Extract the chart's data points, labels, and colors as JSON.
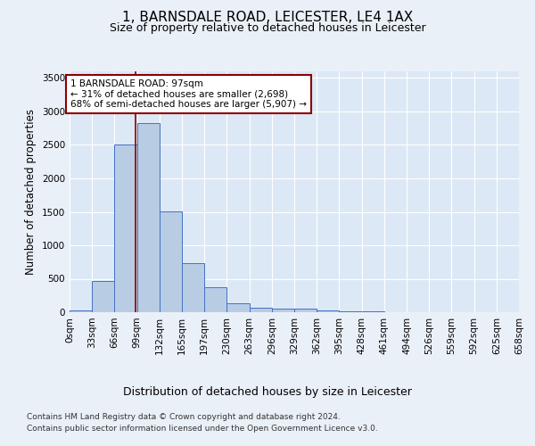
{
  "title1": "1, BARNSDALE ROAD, LEICESTER, LE4 1AX",
  "title2": "Size of property relative to detached houses in Leicester",
  "xlabel": "Distribution of detached houses by size in Leicester",
  "ylabel": "Number of detached properties",
  "bar_values": [
    30,
    470,
    2510,
    2820,
    1510,
    740,
    375,
    135,
    65,
    55,
    55,
    30,
    20,
    10,
    0,
    0,
    0,
    0,
    0,
    0
  ],
  "bar_color": "#b8cce4",
  "bar_edge_color": "#4472c4",
  "x_labels": [
    "0sqm",
    "33sqm",
    "66sqm",
    "99sqm",
    "132sqm",
    "165sqm",
    "197sqm",
    "230sqm",
    "263sqm",
    "296sqm",
    "329sqm",
    "362sqm",
    "395sqm",
    "428sqm",
    "461sqm",
    "494sqm",
    "526sqm",
    "559sqm",
    "592sqm",
    "625sqm",
    "658sqm"
  ],
  "ylim": [
    0,
    3600
  ],
  "yticks": [
    0,
    500,
    1000,
    1500,
    2000,
    2500,
    3000,
    3500
  ],
  "red_line_x": 2.94,
  "annotation_text": "1 BARNSDALE ROAD: 97sqm\n← 31% of detached houses are smaller (2,698)\n68% of semi-detached houses are larger (5,907) →",
  "footer1": "Contains HM Land Registry data © Crown copyright and database right 2024.",
  "footer2": "Contains public sector information licensed under the Open Government Licence v3.0.",
  "background_color": "#eaf0f8",
  "plot_bg_color": "#dce8f5",
  "grid_color": "#ffffff",
  "title1_fontsize": 11,
  "title2_fontsize": 9,
  "axis_label_fontsize": 8.5,
  "tick_fontsize": 7.5,
  "footer_fontsize": 6.5,
  "annotation_fontsize": 7.5
}
